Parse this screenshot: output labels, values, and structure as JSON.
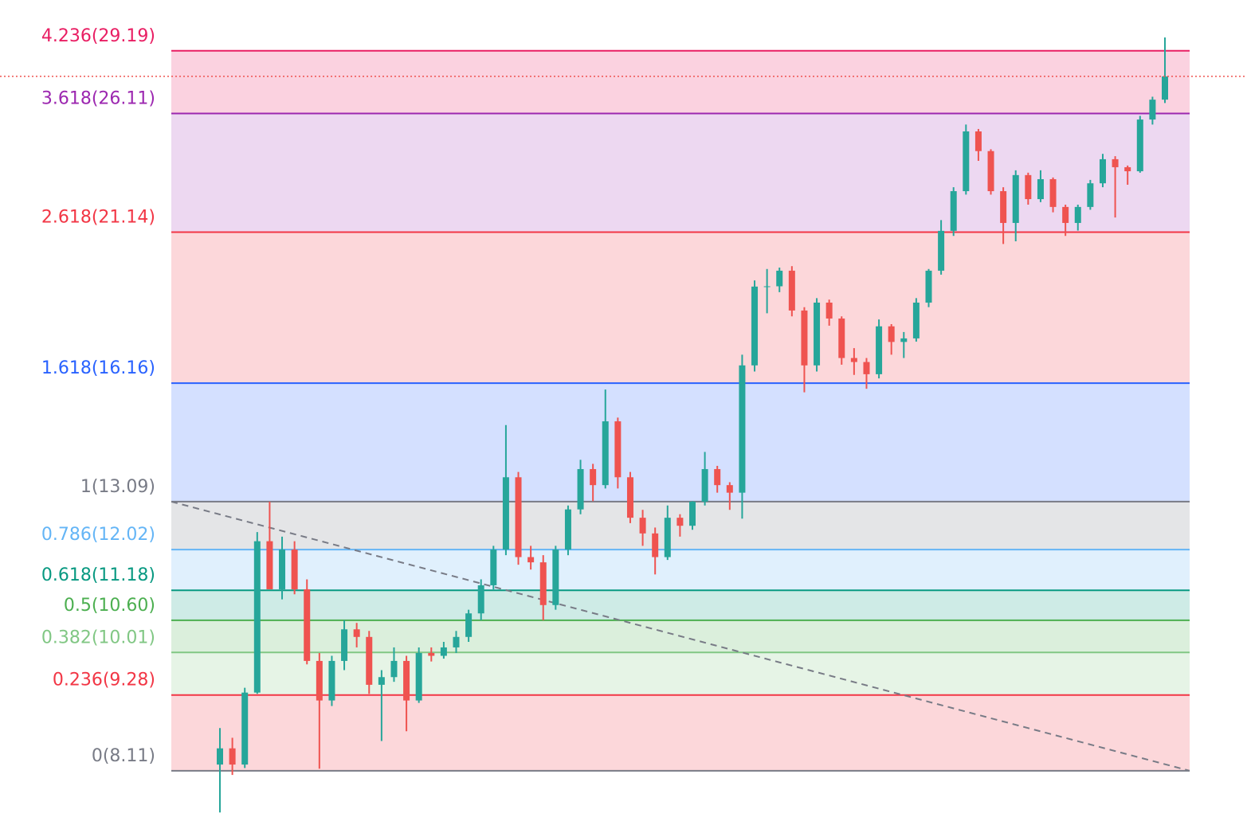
{
  "chart_data": {
    "type": "candlestick",
    "log_scale": true,
    "ylim": [
      7.26,
      31.95
    ],
    "up_color": "#26a69a",
    "down_color": "#ef5350",
    "last_price_line": true,
    "last_price_color": "#ef5350",
    "trend_color": "#787b86",
    "levels": [
      {
        "label": "4.236(29.19)",
        "value": 29.19,
        "color": "#e91e63",
        "fill": "rgba(233,30,99,0.2)"
      },
      {
        "label": "3.618(26.11)",
        "value": 26.11,
        "color": "#9c27b0",
        "fill": "rgba(156,39,176,0.18)"
      },
      {
        "label": "2.618(21.14)",
        "value": 21.14,
        "color": "#f23645",
        "fill": "rgba(242,54,69,0.2)"
      },
      {
        "label": "1.618(16.16)",
        "value": 16.16,
        "color": "#2962ff",
        "fill": "rgba(41,98,255,0.2)"
      },
      {
        "label": "1(13.09)",
        "value": 13.09,
        "color": "#787b86",
        "fill": "rgba(120,123,134,0.2)"
      },
      {
        "label": "0.786(12.02)",
        "value": 12.02,
        "color": "#64b5f6",
        "fill": "rgba(100,181,246,0.2)"
      },
      {
        "label": "0.618(11.18)",
        "value": 11.18,
        "color": "#089981",
        "fill": "rgba(8,153,129,0.2)"
      },
      {
        "label": "0.5(10.60)",
        "value": 10.6,
        "color": "#4caf50",
        "fill": "rgba(76,175,80,0.2)"
      },
      {
        "label": "0.382(10.01)",
        "value": 10.01,
        "color": "#81c784",
        "fill": "rgba(129,199,132,0.2)"
      },
      {
        "label": "0.236(9.28)",
        "value": 9.28,
        "color": "#f23645",
        "fill": "rgba(242,54,69,0.2)"
      },
      {
        "label": "0(8.11)",
        "value": 8.11,
        "color": "#787b86",
        "fill": "none"
      }
    ],
    "candles": [
      [
        8.2,
        8.75,
        7.53,
        8.44
      ],
      [
        8.44,
        8.6,
        8.05,
        8.2
      ],
      [
        8.2,
        9.4,
        8.15,
        9.32
      ],
      [
        9.32,
        12.4,
        9.3,
        12.2
      ],
      [
        12.2,
        13.09,
        11.4,
        11.2
      ],
      [
        11.2,
        12.3,
        11.0,
        12.02
      ],
      [
        12.02,
        12.2,
        11.1,
        11.2
      ],
      [
        11.2,
        11.4,
        9.8,
        9.86
      ],
      [
        9.86,
        10.0,
        8.14,
        9.19
      ],
      [
        9.19,
        9.95,
        9.1,
        9.86
      ],
      [
        9.86,
        10.6,
        9.7,
        10.43
      ],
      [
        10.43,
        10.55,
        10.1,
        10.29
      ],
      [
        10.29,
        10.4,
        9.3,
        9.45
      ],
      [
        9.45,
        9.7,
        8.55,
        9.58
      ],
      [
        9.58,
        10.1,
        9.5,
        9.86
      ],
      [
        9.86,
        9.95,
        8.7,
        9.19
      ],
      [
        9.19,
        10.1,
        9.15,
        10.0
      ],
      [
        10.0,
        10.1,
        9.85,
        9.95
      ],
      [
        9.95,
        10.2,
        9.9,
        10.1
      ],
      [
        10.1,
        10.4,
        10.0,
        10.29
      ],
      [
        10.29,
        10.8,
        10.2,
        10.73
      ],
      [
        10.73,
        11.4,
        10.6,
        11.28
      ],
      [
        11.28,
        12.1,
        11.2,
        12.02
      ],
      [
        12.02,
        15.0,
        11.9,
        13.67
      ],
      [
        13.67,
        13.8,
        11.7,
        11.86
      ],
      [
        11.86,
        12.1,
        11.6,
        11.75
      ],
      [
        11.75,
        11.9,
        10.6,
        10.89
      ],
      [
        10.89,
        12.1,
        10.8,
        12.02
      ],
      [
        12.02,
        13.0,
        11.9,
        12.91
      ],
      [
        12.91,
        14.1,
        12.8,
        13.87
      ],
      [
        13.87,
        14.0,
        13.1,
        13.48
      ],
      [
        13.48,
        15.98,
        13.4,
        15.1
      ],
      [
        15.1,
        15.2,
        13.4,
        13.67
      ],
      [
        13.67,
        13.8,
        12.6,
        12.72
      ],
      [
        12.72,
        12.9,
        12.1,
        12.37
      ],
      [
        12.37,
        12.5,
        11.5,
        11.86
      ],
      [
        11.86,
        13.0,
        11.8,
        12.72
      ],
      [
        12.72,
        12.8,
        12.3,
        12.54
      ],
      [
        12.54,
        13.1,
        12.45,
        13.09
      ],
      [
        13.09,
        14.3,
        13.0,
        13.87
      ],
      [
        13.87,
        13.95,
        13.3,
        13.48
      ],
      [
        13.48,
        13.55,
        12.9,
        13.3
      ],
      [
        13.3,
        17.0,
        12.7,
        16.68
      ],
      [
        16.68,
        19.4,
        16.5,
        19.19
      ],
      [
        19.19,
        19.8,
        18.3,
        19.2
      ],
      [
        19.2,
        19.85,
        19.0,
        19.74
      ],
      [
        19.74,
        19.9,
        18.2,
        18.39
      ],
      [
        18.39,
        18.5,
        15.9,
        16.68
      ],
      [
        16.68,
        18.8,
        16.5,
        18.65
      ],
      [
        18.65,
        18.75,
        17.9,
        18.13
      ],
      [
        18.13,
        18.2,
        16.7,
        16.9
      ],
      [
        16.9,
        17.2,
        16.4,
        16.78
      ],
      [
        16.78,
        16.9,
        16.0,
        16.42
      ],
      [
        16.42,
        18.1,
        16.3,
        17.88
      ],
      [
        17.88,
        17.95,
        17.0,
        17.39
      ],
      [
        17.39,
        17.7,
        16.9,
        17.5
      ],
      [
        17.5,
        18.8,
        17.4,
        18.65
      ],
      [
        18.65,
        19.8,
        18.5,
        19.74
      ],
      [
        19.74,
        21.6,
        19.6,
        21.19
      ],
      [
        21.19,
        22.9,
        21.0,
        22.74
      ],
      [
        22.74,
        25.6,
        22.6,
        25.29
      ],
      [
        25.29,
        25.4,
        24.0,
        24.42
      ],
      [
        24.42,
        24.5,
        22.6,
        22.74
      ],
      [
        22.74,
        22.9,
        20.7,
        21.49
      ],
      [
        21.49,
        23.6,
        20.8,
        23.4
      ],
      [
        23.4,
        23.5,
        22.2,
        22.42
      ],
      [
        22.42,
        23.6,
        22.3,
        23.23
      ],
      [
        23.23,
        23.3,
        21.9,
        22.11
      ],
      [
        22.11,
        22.2,
        21.0,
        21.49
      ],
      [
        21.49,
        22.2,
        21.2,
        22.11
      ],
      [
        22.11,
        23.2,
        22.0,
        23.06
      ],
      [
        23.06,
        24.3,
        22.9,
        24.07
      ],
      [
        24.07,
        24.2,
        21.7,
        23.73
      ],
      [
        23.73,
        23.8,
        23.0,
        23.56
      ],
      [
        23.56,
        26.0,
        23.5,
        25.83
      ],
      [
        25.83,
        26.9,
        25.6,
        26.76
      ],
      [
        26.76,
        29.89,
        26.6,
        27.89
      ]
    ]
  }
}
